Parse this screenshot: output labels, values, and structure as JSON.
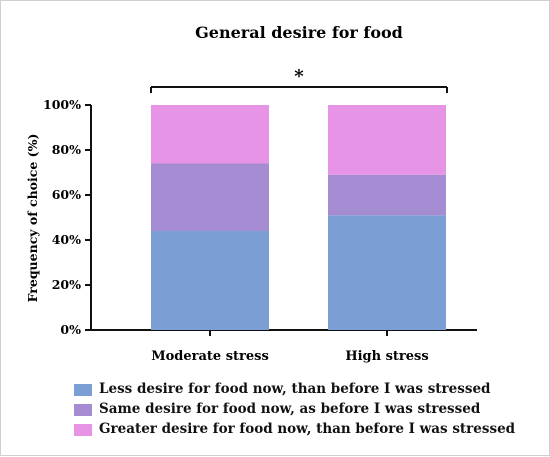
{
  "chart_data": {
    "type": "bar",
    "stacked": true,
    "title": "General desire for food",
    "xlabel": "",
    "ylabel": "Frequency of choice (%)",
    "ylim": [
      0,
      100
    ],
    "y_tick_values": [
      0,
      20,
      40,
      60,
      80,
      100
    ],
    "y_tick_labels": [
      "0%",
      "20%",
      "40%",
      "60%",
      "80%",
      "100%"
    ],
    "categories": [
      "Moderate stress",
      "High stress"
    ],
    "series": [
      {
        "name": "Less desire for food now, than before I was stressed",
        "values": [
          44,
          51
        ],
        "color": "#7b9fd4"
      },
      {
        "name": "Same desire for food now, as before I was stressed",
        "values": [
          30,
          18
        ],
        "color": "#a58bd1"
      },
      {
        "name": "Greater desire for food now, than before I was stressed",
        "values": [
          26,
          31
        ],
        "color": "#e894e6"
      }
    ],
    "annotations": [
      {
        "text": "*",
        "type": "significance-bracket",
        "between": [
          "Moderate stress",
          "High stress"
        ]
      }
    ],
    "grid": false,
    "legend_placement": "bottom"
  }
}
